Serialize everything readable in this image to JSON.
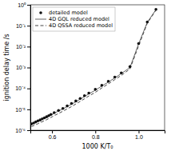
{
  "chart_data": {
    "type": "line",
    "log": "y",
    "grid": false,
    "legend": "upper left",
    "xlabel": "1000 K/T₀",
    "ylabel": "ignition delay time /s",
    "xlim": [
      0.5,
      1.12
    ],
    "ylim": [
      1e-06,
      1
    ],
    "xticks": [
      0.6,
      0.8,
      {
        "value": 1.0,
        "label": "1.0"
      }
    ],
    "yticks": [
      {
        "value": 1e-06,
        "label": "10⁻⁶"
      },
      {
        "value": 1e-05,
        "label": "10⁻⁵"
      },
      {
        "value": 0.0001,
        "label": "10⁻⁴"
      },
      {
        "value": 0.001,
        "label": "10⁻³"
      },
      {
        "value": 0.01,
        "label": "10⁻²"
      },
      {
        "value": 0.1,
        "label": "10⁻¹"
      },
      {
        "value": 1,
        "label": "10⁰"
      }
    ],
    "x": [
      0.505,
      0.515,
      0.525,
      0.535,
      0.545,
      0.555,
      0.565,
      0.575,
      0.585,
      0.595,
      0.61,
      0.63,
      0.65,
      0.67,
      0.69,
      0.71,
      0.73,
      0.75,
      0.77,
      0.8,
      0.83,
      0.86,
      0.89,
      0.92,
      0.96,
      1.0,
      1.04,
      1.08
    ],
    "series": [
      {
        "name": "detailed model",
        "type": "scatter",
        "marker": "circle",
        "color": "#111111",
        "values": [
          2e-06,
          2.2e-06,
          2.5e-06,
          2.8e-06,
          3.1e-06,
          3.5e-06,
          3.9e-06,
          4.4e-06,
          5e-06,
          5.7e-06,
          6.9e-06,
          8.8e-06,
          1.1e-05,
          1.45e-05,
          1.9e-05,
          2.5e-05,
          3.3e-05,
          4.5e-05,
          6e-05,
          9e-05,
          0.00014,
          0.00022,
          0.00035,
          0.00055,
          0.0011,
          0.014,
          0.15,
          0.6
        ]
      },
      {
        "name": "4D GQL reduced model",
        "type": "line",
        "line_style": "solid",
        "color": "#666666",
        "values": [
          1.95e-06,
          2.15e-06,
          2.4e-06,
          2.7e-06,
          3e-06,
          3.35e-06,
          3.75e-06,
          4.2e-06,
          4.7e-06,
          5.4e-06,
          6.5e-06,
          8.3e-06,
          1.05e-05,
          1.35e-05,
          1.75e-05,
          2.3e-05,
          3.05e-05,
          4.1e-05,
          5.5e-05,
          8.2e-05,
          0.00013,
          0.0002,
          0.00032,
          0.00051,
          0.001,
          0.0135,
          0.145,
          0.59
        ]
      },
      {
        "name": "4D QSSA reduced model",
        "type": "line",
        "line_style": "dashed",
        "color": "#444444",
        "values": [
          1.5e-06,
          1.65e-06,
          1.85e-06,
          2.05e-06,
          2.3e-06,
          2.55e-06,
          2.85e-06,
          3.2e-06,
          3.6e-06,
          4.1e-06,
          5e-06,
          6.3e-06,
          8.1e-06,
          1.05e-05,
          1.35e-05,
          1.8e-05,
          2.4e-05,
          3.2e-05,
          4.35e-05,
          6.5e-05,
          0.000105,
          0.000165,
          0.000265,
          0.00042,
          0.00085,
          0.011,
          0.13,
          0.55
        ]
      }
    ]
  }
}
